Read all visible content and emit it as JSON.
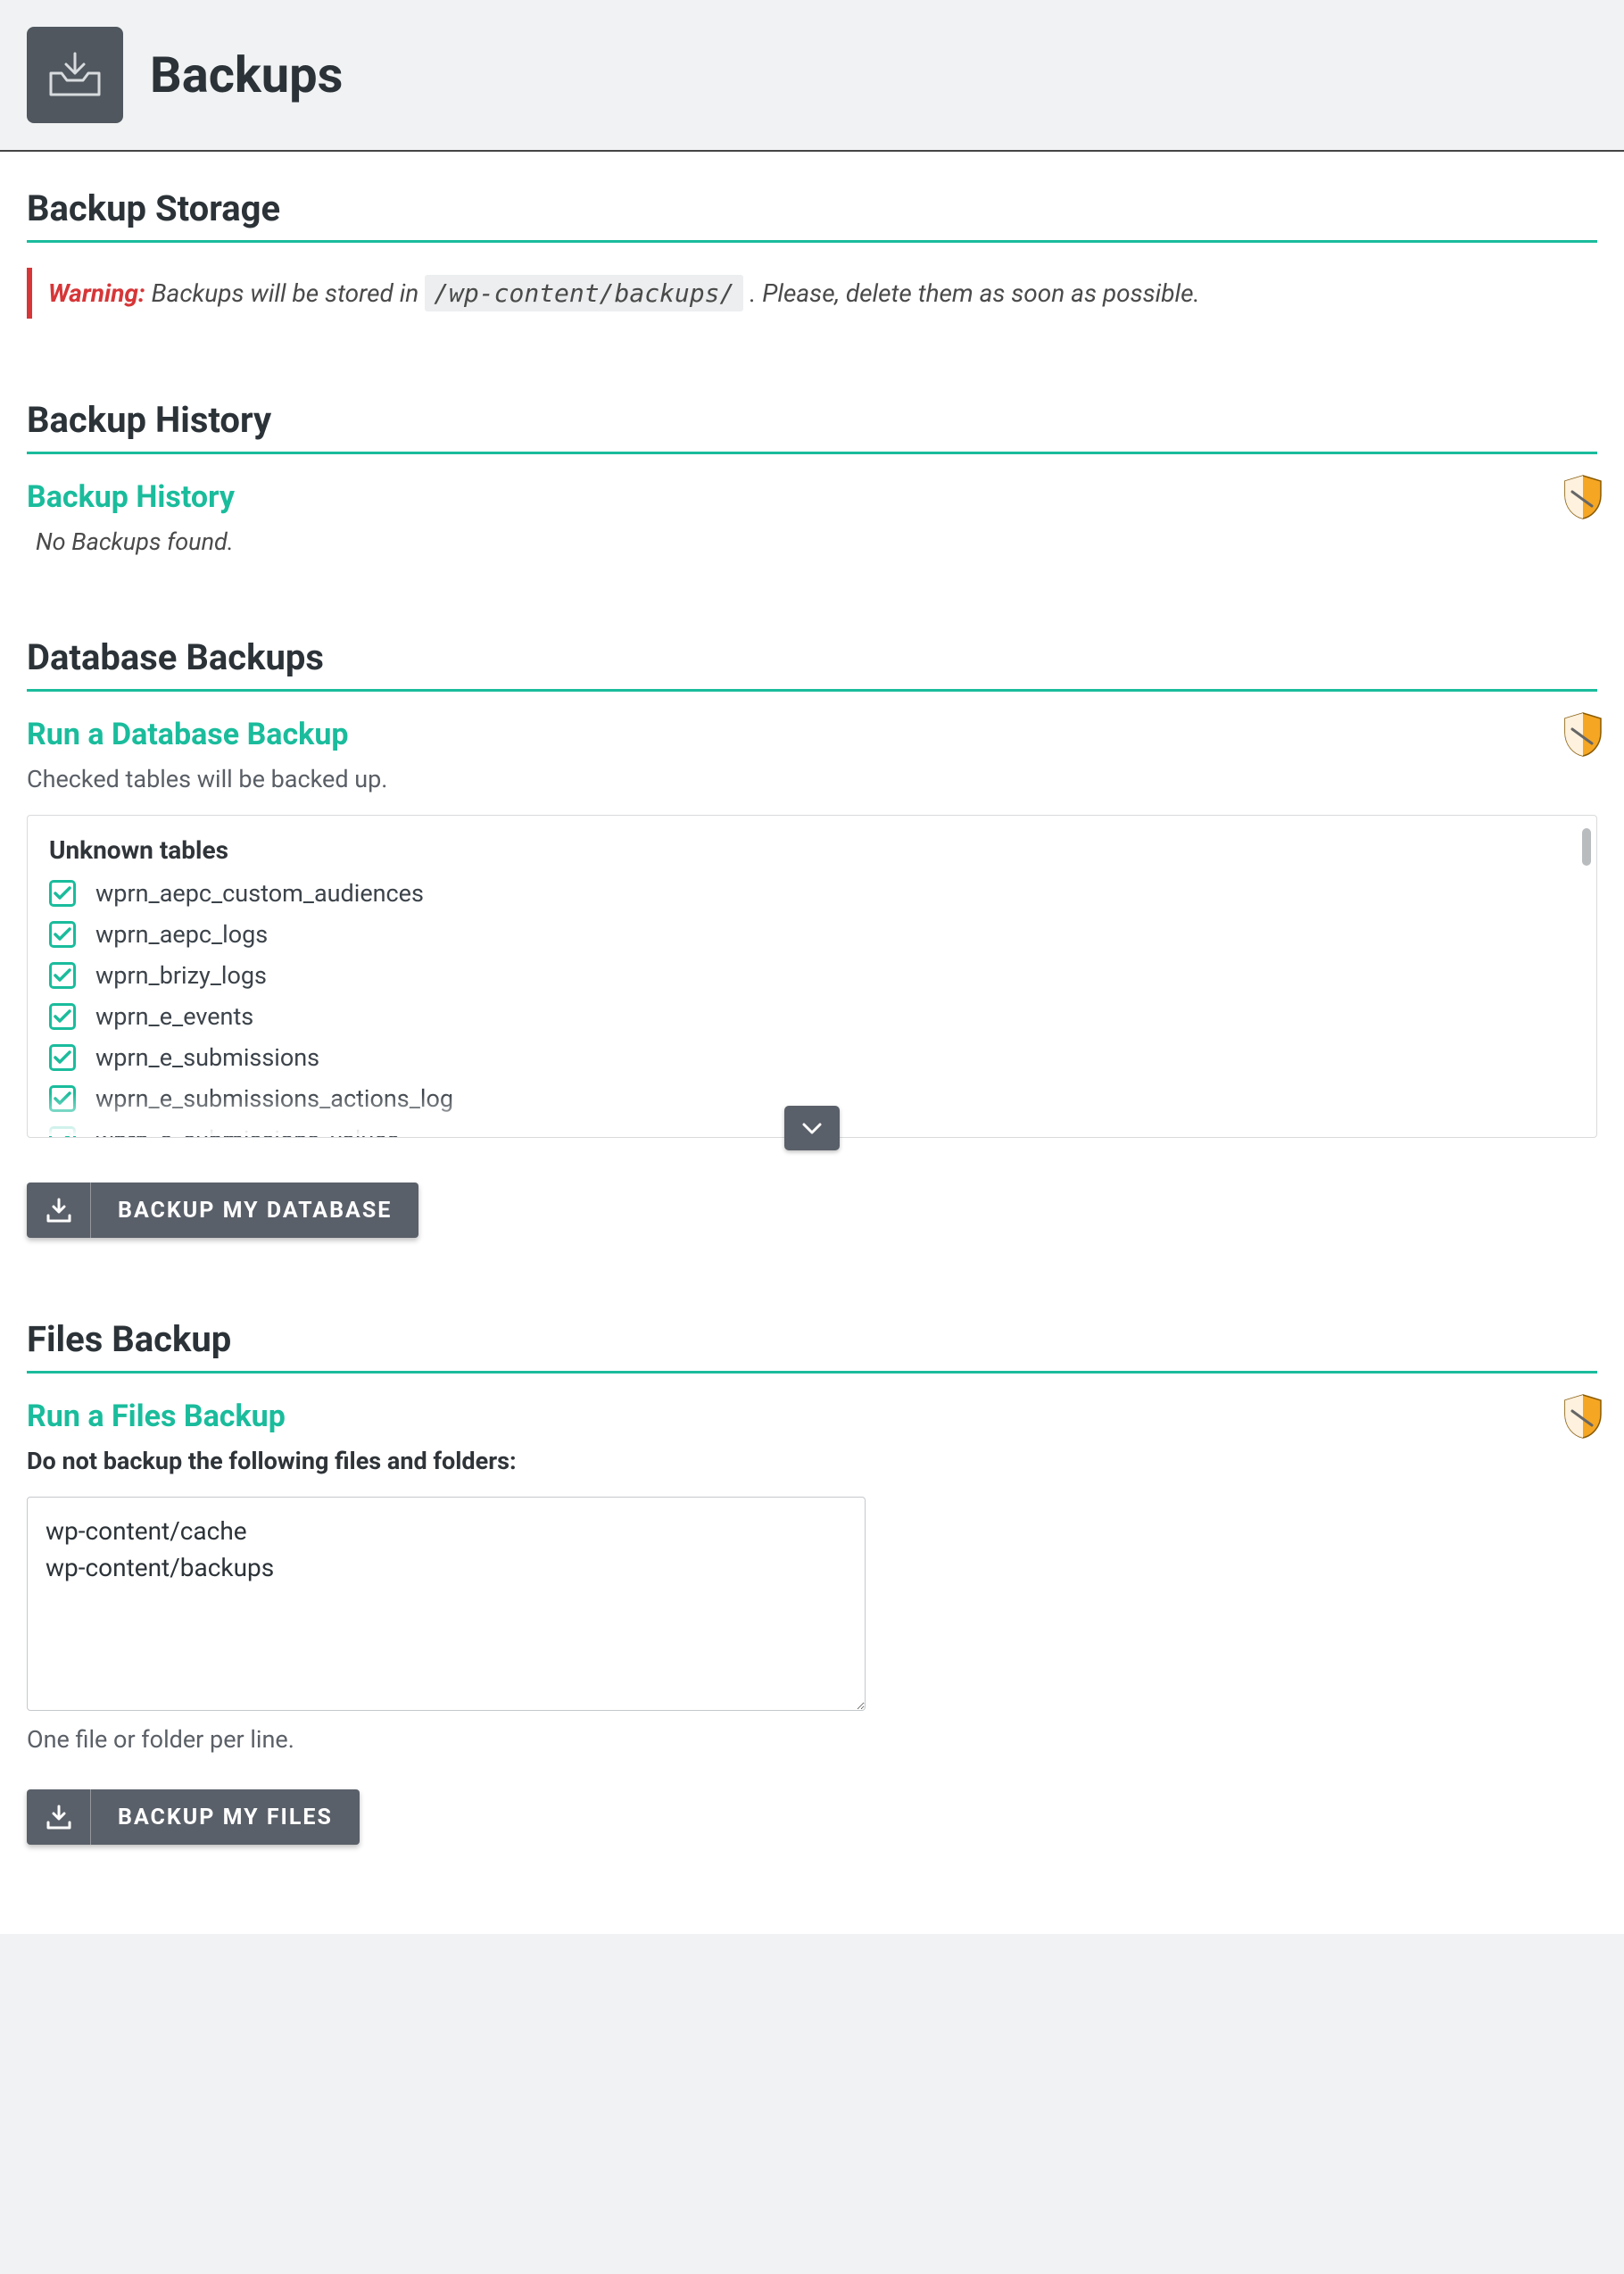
{
  "header": {
    "title": "Backups"
  },
  "colors": {
    "accent": "#1abc9c",
    "danger": "#d63638",
    "button_bg": "#5a6069",
    "page_bg": "#f0f2f3",
    "text": "#2c3338"
  },
  "sections": {
    "storage": {
      "title": "Backup Storage",
      "warning_label": "Warning:",
      "warning_before": "Backups will be stored in",
      "warning_path": "/wp-content/backups/",
      "warning_after": ". Please, delete them as soon as possible."
    },
    "history": {
      "title": "Backup History",
      "sub_title": "Backup History",
      "empty_text": "No Backups found."
    },
    "database": {
      "title": "Database Backups",
      "sub_title": "Run a Database Backup",
      "description": "Checked tables will be backed up.",
      "tables_caption": "Unknown tables",
      "tables": [
        {
          "name": "wprn_aepc_custom_audiences",
          "checked": true
        },
        {
          "name": "wprn_aepc_logs",
          "checked": true
        },
        {
          "name": "wprn_brizy_logs",
          "checked": true
        },
        {
          "name": "wprn_e_events",
          "checked": true
        },
        {
          "name": "wprn_e_submissions",
          "checked": true
        },
        {
          "name": "wprn_e_submissions_actions_log",
          "checked": true
        },
        {
          "name": "wprn_e_submissions_values",
          "checked": true
        }
      ],
      "button_label": "BACKUP MY DATABASE"
    },
    "files": {
      "title": "Files Backup",
      "sub_title": "Run a Files Backup",
      "exclude_label": "Do not backup the following files and folders:",
      "exclude_value": "wp-content/cache\nwp-content/backups",
      "help_text": "One file or folder per line.",
      "button_label": "BACKUP MY FILES"
    }
  }
}
